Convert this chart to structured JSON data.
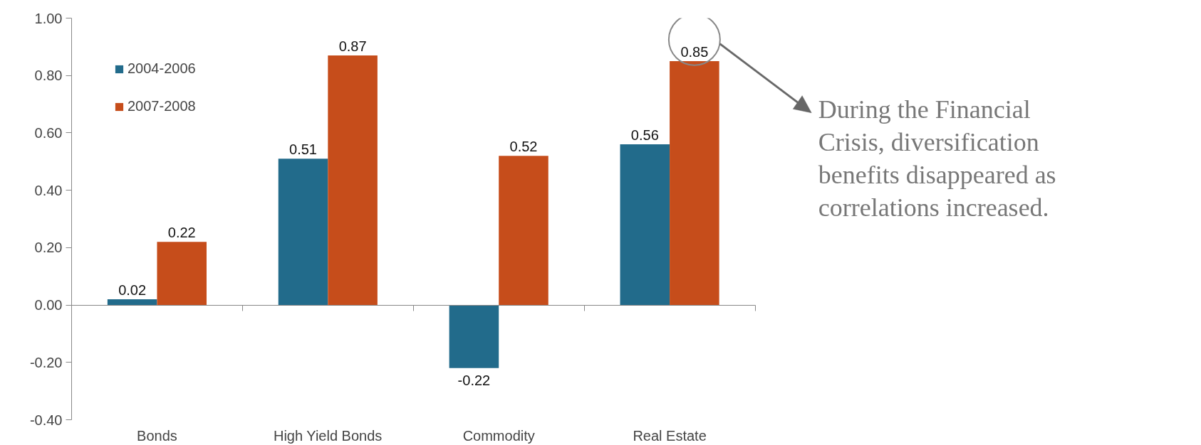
{
  "chart_data": {
    "type": "bar",
    "categories": [
      "Bonds",
      "High Yield Bonds",
      "Commodity",
      "Real Estate"
    ],
    "series": [
      {
        "name": "2004-2006",
        "color": "#226b8b",
        "values": [
          0.02,
          0.51,
          -0.22,
          0.56
        ]
      },
      {
        "name": "2007-2008",
        "color": "#c64d1b",
        "values": [
          0.22,
          0.87,
          0.52,
          0.85
        ]
      }
    ],
    "ylim": [
      -0.4,
      1.0
    ],
    "yticks": [
      {
        "value": -0.4,
        "label": "-0.40"
      },
      {
        "value": -0.2,
        "label": "-0.20"
      },
      {
        "value": 0,
        "label": "0.00"
      },
      {
        "value": 0.2,
        "label": "0.20"
      },
      {
        "value": 0.4,
        "label": "0.40"
      },
      {
        "value": 0.6,
        "label": "0.60"
      },
      {
        "value": 0.8,
        "label": "0.80"
      },
      {
        "value": 1.0,
        "label": "1.00"
      }
    ],
    "data_labels": true,
    "legend": "top left",
    "annotations": [
      "During the Financial Crisis, diversification benefits disappeared as correlations increased."
    ]
  }
}
